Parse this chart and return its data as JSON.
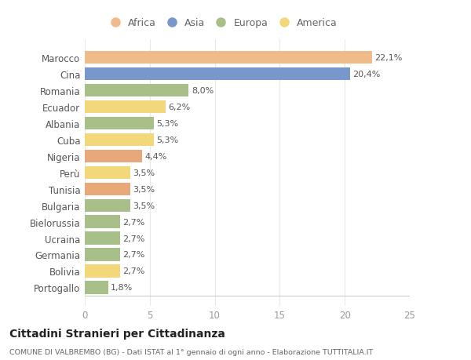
{
  "categories": [
    "Portogallo",
    "Bolivia",
    "Germania",
    "Ucraina",
    "Bielorussia",
    "Bulgaria",
    "Tunisia",
    "Perù",
    "Nigeria",
    "Cuba",
    "Albania",
    "Ecuador",
    "Romania",
    "Cina",
    "Marocco"
  ],
  "values": [
    1.8,
    2.7,
    2.7,
    2.7,
    2.7,
    3.5,
    3.5,
    3.5,
    4.4,
    5.3,
    5.3,
    6.2,
    8.0,
    20.4,
    22.1
  ],
  "labels": [
    "1,8%",
    "2,7%",
    "2,7%",
    "2,7%",
    "2,7%",
    "3,5%",
    "3,5%",
    "3,5%",
    "4,4%",
    "5,3%",
    "5,3%",
    "6,2%",
    "8,0%",
    "20,4%",
    "22,1%"
  ],
  "colors": [
    "#a8bf8a",
    "#f2d87a",
    "#a8bf8a",
    "#a8bf8a",
    "#a8bf8a",
    "#a8bf8a",
    "#e8a87a",
    "#f2d87a",
    "#e8a87a",
    "#f2d87a",
    "#a8bf8a",
    "#f2d87a",
    "#a8bf8a",
    "#7898cc",
    "#f0bb8a"
  ],
  "continent": [
    "Europa",
    "America",
    "Europa",
    "Europa",
    "Europa",
    "Europa",
    "Africa",
    "America",
    "Africa",
    "America",
    "Europa",
    "America",
    "Europa",
    "Asia",
    "Africa"
  ],
  "legend_labels": [
    "Africa",
    "Asia",
    "Europa",
    "America"
  ],
  "legend_colors": [
    "#f0bb8a",
    "#7898cc",
    "#a8bf8a",
    "#f2d87a"
  ],
  "title": "Cittadini Stranieri per Cittadinanza",
  "subtitle": "COMUNE DI VALBREMBO (BG) - Dati ISTAT al 1° gennaio di ogni anno - Elaborazione TUTTITALIA.IT",
  "xlim": [
    0,
    25
  ],
  "xticks": [
    0,
    5,
    10,
    15,
    20,
    25
  ],
  "background_color": "#ffffff",
  "grid_color": "#e8e8e8",
  "bar_height": 0.78,
  "label_fontsize": 8,
  "ytick_fontsize": 8.5,
  "xtick_fontsize": 8.5
}
